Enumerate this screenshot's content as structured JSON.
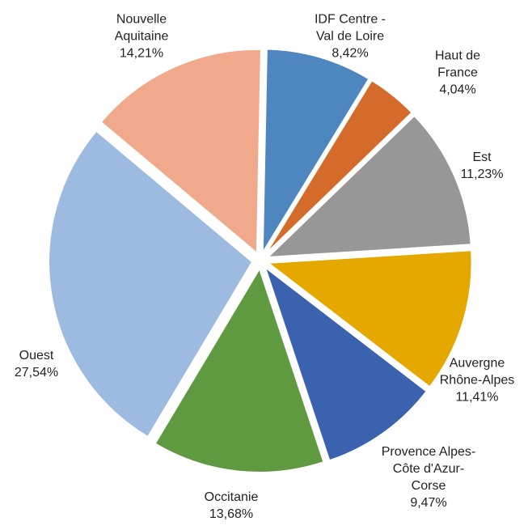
{
  "chart_data": {
    "type": "pie",
    "categories": [
      "IDF Centre - Val de Loire",
      "Haut de France",
      "Est",
      "Auvergne Rhône-Alpes",
      "Provence Alpes-Côte d'Azur-Corse",
      "Occitanie",
      "Ouest",
      "Nouvelle Aquitaine"
    ],
    "values": [
      8.42,
      4.04,
      11.23,
      11.41,
      9.47,
      13.68,
      27.54,
      14.21
    ],
    "value_labels": [
      "8,42%",
      "4,04%",
      "11,23%",
      "11,41%",
      "9,47%",
      "13,68%",
      "27,54%",
      "14,21%"
    ],
    "colors": [
      "#4e86c0",
      "#d56b2b",
      "#979797",
      "#e4a800",
      "#3a62ae",
      "#5f9a40",
      "#9dbbe1",
      "#f0a98a"
    ]
  }
}
